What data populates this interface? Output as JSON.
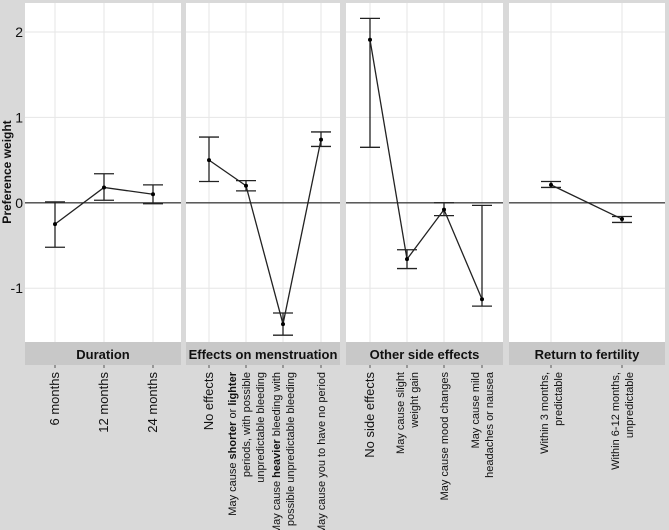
{
  "chart_data": {
    "type": "line",
    "ylabel": "Preference weight",
    "ylim": [
      -1.63,
      2.34
    ],
    "yticks": [
      2,
      1,
      0,
      -1
    ],
    "grid": true,
    "reference_line": 0,
    "panels": [
      {
        "title": "Duration",
        "points": [
          {
            "label": [
              [
                {
                  "t": "6 months"
                }
              ]
            ],
            "value": -0.25,
            "ci": [
              -0.52,
              0.01
            ]
          },
          {
            "label": [
              [
                {
                  "t": "12 months"
                }
              ]
            ],
            "value": 0.18,
            "ci": [
              0.03,
              0.34
            ]
          },
          {
            "label": [
              [
                {
                  "t": "24 months"
                }
              ]
            ],
            "value": 0.1,
            "ci": [
              -0.01,
              0.21
            ]
          }
        ]
      },
      {
        "title": "Effects on menstruation",
        "points": [
          {
            "label": [
              [
                {
                  "t": "No effects"
                }
              ]
            ],
            "value": 0.5,
            "ci": [
              0.25,
              0.77
            ]
          },
          {
            "label": [
              [
                {
                  "t": "May cause "
                },
                {
                  "t": "shorter",
                  "b": true
                },
                {
                  "t": " or "
                },
                {
                  "t": "lighter",
                  "b": true
                }
              ],
              [
                {
                  "t": "periods, with possible"
                }
              ],
              [
                {
                  "t": "unpredictable bleeding"
                }
              ]
            ],
            "value": 0.2,
            "ci": [
              0.14,
              0.26
            ]
          },
          {
            "label": [
              [
                {
                  "t": "May cause "
                },
                {
                  "t": "heavier",
                  "b": true
                },
                {
                  "t": " bleeding with"
                }
              ],
              [
                {
                  "t": "possible unpredictable bleeding"
                }
              ]
            ],
            "value": -1.42,
            "ci": [
              -1.55,
              -1.29
            ]
          },
          {
            "label": [
              [
                {
                  "t": "May cause you to have no period"
                }
              ]
            ],
            "value": 0.74,
            "ci": [
              0.66,
              0.83
            ]
          }
        ]
      },
      {
        "title": "Other side effects",
        "points": [
          {
            "label": [
              [
                {
                  "t": "No side effects"
                }
              ]
            ],
            "value": 1.91,
            "ci": [
              0.65,
              2.16
            ]
          },
          {
            "label": [
              [
                {
                  "t": "May cause slight"
                }
              ],
              [
                {
                  "t": "weight gain"
                }
              ]
            ],
            "value": -0.66,
            "ci": [
              -0.77,
              -0.55
            ]
          },
          {
            "label": [
              [
                {
                  "t": "May cause mood changes"
                }
              ]
            ],
            "value": -0.08,
            "ci": [
              -0.15,
              0.0
            ]
          },
          {
            "label": [
              [
                {
                  "t": "May cause mild"
                }
              ],
              [
                {
                  "t": "headaches or nausea"
                }
              ]
            ],
            "value": -1.13,
            "ci": [
              -1.21,
              -0.03
            ]
          }
        ]
      },
      {
        "title": "Return to fertility",
        "points": [
          {
            "label": [
              [
                {
                  "t": "Within 3 months,"
                }
              ],
              [
                {
                  "t": "predictable"
                }
              ]
            ],
            "value": 0.21,
            "ci": [
              0.18,
              0.25
            ]
          },
          {
            "label": [
              [
                {
                  "t": "Within 6-12 months,"
                }
              ],
              [
                {
                  "t": "unpredictable"
                }
              ]
            ],
            "value": -0.19,
            "ci": [
              -0.23,
              -0.16
            ]
          }
        ]
      }
    ]
  },
  "colors": {
    "panel_bg": "#ffffff",
    "strip_bg": "#c8c8c8",
    "outer_bg": "#d9d9d9",
    "grid": "#e6e6e6",
    "line": "#222222"
  }
}
